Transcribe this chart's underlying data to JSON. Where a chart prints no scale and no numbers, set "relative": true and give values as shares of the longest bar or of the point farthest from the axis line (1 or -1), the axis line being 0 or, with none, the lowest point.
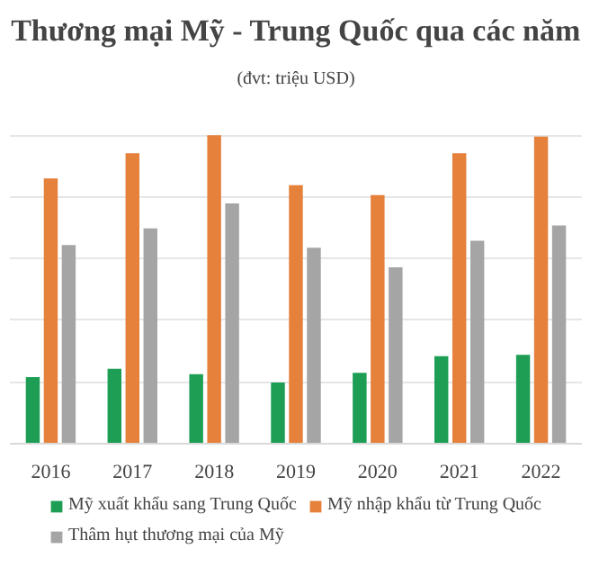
{
  "chart_data": {
    "type": "bar",
    "title": "Thương mại Mỹ - Trung Quốc qua các năm",
    "subtitle": "(đvt: triệu USD)",
    "relative": true,
    "grid": "y",
    "legend": "bottom",
    "categories": [
      "2016",
      "2017",
      "2018",
      "2019",
      "2020",
      "2021",
      "2022"
    ],
    "series": [
      {
        "name": "Mỹ xuất khẩu sang Trung Quốc",
        "color": "#1e9e55",
        "values": [
          0.216,
          0.243,
          0.225,
          0.198,
          0.23,
          0.284,
          0.288
        ]
      },
      {
        "name": "Mỹ nhập khẩu từ Trung Quốc",
        "color": "#e5813a",
        "values": [
          0.86,
          0.941,
          1,
          0.838,
          0.806,
          0.941,
          0.995
        ]
      },
      {
        "name": "Thâm hụt thương mại của Mỹ",
        "color": "#a5a5a5",
        "values": [
          0.644,
          0.698,
          0.779,
          0.635,
          0.572,
          0.658,
          0.707
        ]
      }
    ]
  }
}
